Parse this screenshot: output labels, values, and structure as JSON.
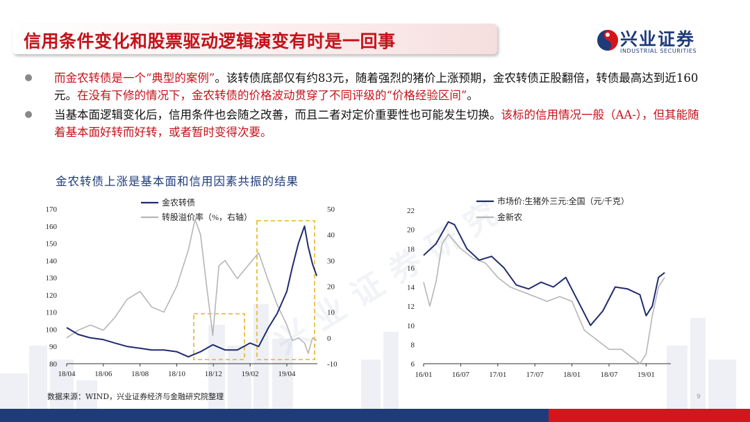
{
  "slide": {
    "title": "信用条件变化和股票驱动逻辑演变有时是一回事",
    "page_number": "9"
  },
  "brand": {
    "name_cn": "兴业证券",
    "name_en": "INDUSTRIAL SECURITIES",
    "watermark": "兴业证券研究",
    "colors": {
      "primary": "#1f3b7a",
      "accent": "#c4121a",
      "footer_red": "#d4151c"
    }
  },
  "bullets": [
    {
      "red": "而金农转债是一个“典型的案例”",
      "black": "。该转债底部仅有约83元，随着强烈的猪价上涨预期，金农转债正股翻倍，转债最高达到近160元。",
      "red2": "在没有下修的情况下，金农转债的价格波动贯穿了不同评级的“价格经验区间”",
      "black2": "。"
    },
    {
      "black": "当基本面逻辑变化后，信用条件也会随之改善，而且二者对定价重要性也可能发生切换。",
      "red": "该标的信用情况一般（AA-），但其能随着基本面好转而好转，或者暂时变得次要。"
    }
  ],
  "subtitle": "金农转债上涨是基本面和信用因素共振的结果",
  "source": "数据来源：WIND，兴业证券经济与金融研究院整理",
  "chart_data": [
    {
      "type": "line",
      "title": "",
      "x_ticks": [
        "18/04",
        "18/06",
        "18/08",
        "18/10",
        "18/12",
        "19/02",
        "19/04"
      ],
      "y_left": {
        "ticks": [
          80,
          90,
          100,
          110,
          120,
          130,
          140,
          150,
          160,
          170
        ],
        "lim": [
          80,
          170
        ]
      },
      "y_right": {
        "ticks": [
          -10,
          0,
          10,
          20,
          30,
          40,
          50
        ],
        "lim": [
          -10,
          50
        ]
      },
      "legend_position": "top",
      "series": [
        {
          "name": "金农转债",
          "axis": "left",
          "color": "#1f2a6e",
          "x": [
            "2018-04-01",
            "2018-04-20",
            "2018-05-10",
            "2018-05-31",
            "2018-06-20",
            "2018-07-10",
            "2018-07-31",
            "2018-08-20",
            "2018-09-10",
            "2018-10-01",
            "2018-10-20",
            "2018-11-10",
            "2018-11-30",
            "2018-12-20",
            "2019-01-10",
            "2019-01-31",
            "2019-02-15",
            "2019-03-01",
            "2019-03-15",
            "2019-04-01",
            "2019-04-10",
            "2019-04-20",
            "2019-04-30",
            "2019-05-06",
            "2019-05-13",
            "2019-05-20"
          ],
          "values": [
            101,
            97,
            95,
            94,
            92,
            90,
            89,
            88,
            88,
            87,
            84,
            87,
            91,
            88,
            88,
            92,
            90,
            101,
            109,
            122,
            136,
            150,
            160,
            148,
            138,
            131
          ]
        },
        {
          "name": "转股溢价率（%，右轴）",
          "axis": "right",
          "color": "#b5b5b5",
          "x": [
            "2018-04-01",
            "2018-04-20",
            "2018-05-10",
            "2018-05-31",
            "2018-06-20",
            "2018-07-10",
            "2018-07-31",
            "2018-08-20",
            "2018-09-10",
            "2018-10-01",
            "2018-10-20",
            "2018-10-31",
            "2018-11-10",
            "2018-11-20",
            "2018-11-30",
            "2018-12-10",
            "2018-12-20",
            "2019-01-10",
            "2019-01-31",
            "2019-02-15",
            "2019-03-01",
            "2019-03-15",
            "2019-04-01",
            "2019-04-10",
            "2019-04-20",
            "2019-04-30",
            "2019-05-06",
            "2019-05-13",
            "2019-05-20"
          ],
          "values": [
            0,
            3,
            5,
            3,
            8,
            15,
            18,
            12,
            10,
            20,
            34,
            46,
            40,
            20,
            1,
            28,
            30,
            23,
            29,
            33,
            22,
            13,
            5,
            -1,
            0,
            -2,
            -6,
            0,
            -1
          ]
        }
      ]
    },
    {
      "type": "line",
      "title": "",
      "x_ticks": [
        "16/01",
        "16/07",
        "17/01",
        "17/07",
        "18/01",
        "18/07",
        "19/01"
      ],
      "y": {
        "ticks": [
          6,
          8,
          10,
          12,
          14,
          16,
          18,
          20,
          22
        ],
        "lim": [
          6,
          22
        ]
      },
      "legend_position": "top",
      "series": [
        {
          "name": "市场价:生猪外三元:全国（元/千克）",
          "color": "#1f2a6e",
          "x": [
            "2016-01",
            "2016-03",
            "2016-05",
            "2016-06",
            "2016-08",
            "2016-10",
            "2016-12",
            "2017-02",
            "2017-04",
            "2017-06",
            "2017-08",
            "2017-10",
            "2017-12",
            "2018-02",
            "2018-04",
            "2018-06",
            "2018-08",
            "2018-10",
            "2018-12",
            "2019-01",
            "2019-02",
            "2019-03",
            "2019-04"
          ],
          "values": [
            17.3,
            18.5,
            20.8,
            20.5,
            18.0,
            16.8,
            17.2,
            16.0,
            14.2,
            13.8,
            14.5,
            14.0,
            15.0,
            12.5,
            10.0,
            11.5,
            14.0,
            13.8,
            13.2,
            11.0,
            12.0,
            15.0,
            15.5
          ]
        },
        {
          "name": "金新农",
          "color": "#b5b5b5",
          "x": [
            "2016-01",
            "2016-02",
            "2016-03",
            "2016-04",
            "2016-05",
            "2016-07",
            "2016-09",
            "2016-11",
            "2017-01",
            "2017-03",
            "2017-05",
            "2017-07",
            "2017-09",
            "2017-11",
            "2018-01",
            "2018-03",
            "2018-05",
            "2018-07",
            "2018-09",
            "2018-11",
            "2018-12",
            "2019-01",
            "2019-02",
            "2019-03",
            "2019-04"
          ],
          "values": [
            14.5,
            12.0,
            14.5,
            18.5,
            19.5,
            18.0,
            17.0,
            16.5,
            15.0,
            14.0,
            13.5,
            13.0,
            12.5,
            13.0,
            12.5,
            9.5,
            8.5,
            7.5,
            7.5,
            6.5,
            6.0,
            7.0,
            11.0,
            14.0,
            15.0
          ]
        }
      ]
    }
  ]
}
